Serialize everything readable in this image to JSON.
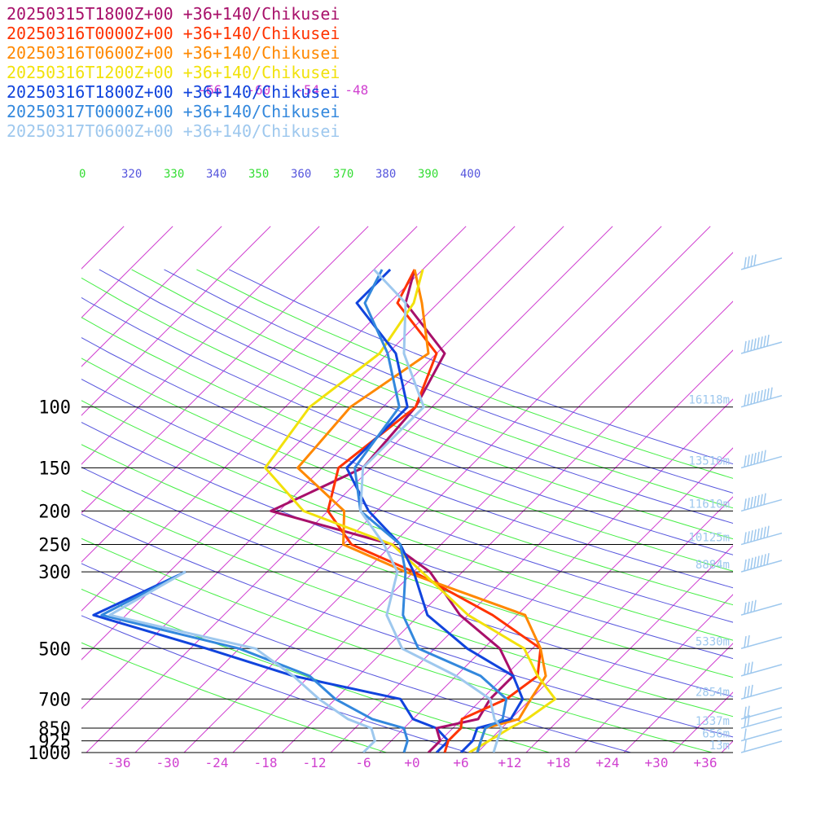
{
  "chart_data": {
    "type": "line",
    "title": "",
    "xlabel": "",
    "ylabel": "",
    "pressure_ticks": [
      "100",
      "150",
      "200",
      "250",
      "300",
      "500",
      "700",
      "850",
      "925",
      "1000"
    ],
    "pressure_levels": [
      100,
      150,
      200,
      250,
      300,
      500,
      700,
      850,
      925,
      1000
    ],
    "temp_ticks": [
      "-36",
      "-30",
      "-24",
      "-18",
      "-12",
      "-6",
      "+0",
      "+6",
      "+12",
      "+18",
      "+24",
      "+30",
      "+36"
    ],
    "temp_values": [
      -36,
      -30,
      -24,
      -18,
      -12,
      -6,
      0,
      6,
      12,
      18,
      24,
      30,
      36
    ],
    "upper_temp_labels": [
      "-66",
      "-60",
      "-54",
      "-48"
    ],
    "theta_labels": [
      {
        "text": "0",
        "color": "#33dd33"
      },
      {
        "text": "320",
        "color": "#5555dd"
      },
      {
        "text": "330",
        "color": "#33dd33"
      },
      {
        "text": "340",
        "color": "#5555dd"
      },
      {
        "text": "350",
        "color": "#33dd33"
      },
      {
        "text": "360",
        "color": "#5555dd"
      },
      {
        "text": "370",
        "color": "#33dd33"
      },
      {
        "text": "380",
        "color": "#5555dd"
      },
      {
        "text": "390",
        "color": "#33dd33"
      },
      {
        "text": "400",
        "color": "#5555dd"
      }
    ],
    "height_labels": [
      {
        "p": 100,
        "text": "16118m"
      },
      {
        "p": 150,
        "text": "13510m"
      },
      {
        "p": 200,
        "text": "11610m"
      },
      {
        "p": 250,
        "text": "10125m"
      },
      {
        "p": 300,
        "text": "8884m"
      },
      {
        "p": 500,
        "text": "5330m"
      },
      {
        "p": 700,
        "text": "2854m"
      },
      {
        "p": 850,
        "text": "1337m"
      },
      {
        "p": 925,
        "text": "656m"
      },
      {
        "p": 1000,
        "text": "13m"
      }
    ],
    "series": [
      {
        "name": "20250315T1800Z+00 +36+140/Chikusei",
        "color": "#a8106a",
        "points": [
          [
            1000,
            2
          ],
          [
            925,
            2
          ],
          [
            850,
            0
          ],
          [
            800,
            4
          ],
          [
            700,
            3
          ],
          [
            600,
            3
          ],
          [
            500,
            -2
          ],
          [
            400,
            -11
          ],
          [
            300,
            -20
          ],
          [
            250,
            -28
          ],
          [
            200,
            -47
          ],
          [
            150,
            -41
          ],
          [
            100,
            -42
          ],
          [
            70,
            -45
          ],
          [
            50,
            -56
          ],
          [
            40,
            -59
          ]
        ]
      },
      {
        "name": "20250316T0000Z+00 +36+140/Chikusei",
        "color": "#ff3300",
        "points": [
          [
            1000,
            4
          ],
          [
            925,
            3
          ],
          [
            850,
            3
          ],
          [
            800,
            2
          ],
          [
            700,
            5
          ],
          [
            600,
            6
          ],
          [
            500,
            3
          ],
          [
            400,
            -7
          ],
          [
            300,
            -22
          ],
          [
            250,
            -33
          ],
          [
            200,
            -40
          ],
          [
            150,
            -44
          ],
          [
            100,
            -42
          ],
          [
            70,
            -46
          ],
          [
            50,
            -57
          ],
          [
            40,
            -59
          ]
        ]
      },
      {
        "name": "20250316T0600Z+00 +36+140/Chikusei",
        "color": "#ff8800",
        "points": [
          [
            1000,
            8
          ],
          [
            925,
            7
          ],
          [
            850,
            6
          ],
          [
            800,
            9
          ],
          [
            700,
            8
          ],
          [
            600,
            7
          ],
          [
            500,
            3
          ],
          [
            400,
            -3
          ],
          [
            300,
            -23
          ],
          [
            250,
            -34
          ],
          [
            200,
            -38
          ],
          [
            150,
            -49
          ],
          [
            100,
            -50
          ],
          [
            70,
            -47
          ],
          [
            50,
            -54
          ],
          [
            40,
            -59
          ]
        ]
      },
      {
        "name": "20250316T1200Z+00 +36+140/Chikusei",
        "color": "#f2e10c",
        "points": [
          [
            1000,
            7
          ],
          [
            925,
            8
          ],
          [
            850,
            9
          ],
          [
            800,
            10
          ],
          [
            700,
            11
          ],
          [
            600,
            6
          ],
          [
            500,
            1
          ],
          [
            400,
            -10
          ],
          [
            300,
            -21
          ],
          [
            250,
            -28
          ],
          [
            200,
            -43
          ],
          [
            150,
            -53
          ],
          [
            100,
            -55
          ],
          [
            70,
            -53
          ],
          [
            50,
            -55
          ],
          [
            40,
            -58
          ]
        ]
      },
      {
        "name": "20250316T1800Z+00 +36+140/Chikusei",
        "color": "#1144dd",
        "points": [
          [
            1000,
            6
          ],
          [
            925,
            6
          ],
          [
            850,
            5
          ],
          [
            800,
            8
          ],
          [
            700,
            7
          ],
          [
            600,
            3
          ],
          [
            500,
            -6
          ],
          [
            400,
            -15
          ],
          [
            300,
            -22
          ],
          [
            250,
            -27
          ],
          [
            200,
            -35
          ],
          [
            150,
            -43
          ],
          [
            100,
            -43
          ],
          [
            70,
            -51
          ],
          [
            50,
            -62
          ],
          [
            40,
            -62
          ]
        ]
      },
      {
        "name": "20250317T0000Z+00 +36+140/Chikusei",
        "color": "#3388dd",
        "points": [
          [
            1000,
            8
          ],
          [
            925,
            7
          ],
          [
            850,
            6
          ],
          [
            800,
            7
          ],
          [
            700,
            5
          ],
          [
            600,
            -1
          ],
          [
            500,
            -12
          ],
          [
            400,
            -18
          ],
          [
            300,
            -23
          ],
          [
            250,
            -27
          ],
          [
            200,
            -36
          ],
          [
            150,
            -42
          ],
          [
            100,
            -44
          ],
          [
            70,
            -52
          ],
          [
            50,
            -61
          ],
          [
            40,
            -63
          ]
        ]
      },
      {
        "name": "20250317T0600Z+00 +36+140/Chikusei",
        "color": "#9ec8ee",
        "points": [
          [
            1000,
            10
          ],
          [
            925,
            9
          ],
          [
            850,
            8
          ],
          [
            800,
            6
          ],
          [
            700,
            3
          ],
          [
            600,
            -4
          ],
          [
            500,
            -14
          ],
          [
            400,
            -20
          ],
          [
            300,
            -24
          ],
          [
            250,
            -29
          ],
          [
            200,
            -36
          ],
          [
            150,
            -41
          ],
          [
            100,
            -41
          ],
          [
            70,
            -50
          ],
          [
            50,
            -56
          ],
          [
            40,
            -64
          ]
        ]
      }
    ],
    "dewpoint_series": [
      {
        "name": "20250316T1800Z+00 +36+140/Chikusei",
        "color": "#1144dd",
        "points": [
          [
            1000,
            3
          ],
          [
            925,
            3
          ],
          [
            850,
            0
          ],
          [
            800,
            -4
          ],
          [
            700,
            -8
          ],
          [
            600,
            -24
          ],
          [
            500,
            -38
          ],
          [
            400,
            -56
          ],
          [
            300,
            -50
          ]
        ]
      },
      {
        "name": "20250317T0000Z+00 +36+140/Chikusei",
        "color": "#3388dd",
        "points": [
          [
            1000,
            -1
          ],
          [
            925,
            -2
          ],
          [
            850,
            -4
          ],
          [
            800,
            -9
          ],
          [
            700,
            -16
          ],
          [
            600,
            -22
          ],
          [
            500,
            -34
          ],
          [
            400,
            -55
          ],
          [
            300,
            -50
          ]
        ]
      },
      {
        "name": "20250317T0600Z+00 +36+140/Chikusei",
        "color": "#9ec8ee",
        "points": [
          [
            1000,
            -6
          ],
          [
            925,
            -6
          ],
          [
            850,
            -8
          ],
          [
            800,
            -12
          ],
          [
            700,
            -18
          ],
          [
            600,
            -24
          ],
          [
            500,
            -32
          ],
          [
            400,
            -54
          ],
          [
            300,
            -50
          ]
        ]
      }
    ],
    "wind_barbs": [
      {
        "p": 40,
        "wspd": 40
      },
      {
        "p": 70,
        "wspd": 80
      },
      {
        "p": 100,
        "wspd": 90
      },
      {
        "p": 150,
        "wspd": 70
      },
      {
        "p": 200,
        "wspd": 70
      },
      {
        "p": 250,
        "wspd": 80
      },
      {
        "p": 300,
        "wspd": 80
      },
      {
        "p": 400,
        "wspd": 35
      },
      {
        "p": 500,
        "wspd": 15
      },
      {
        "p": 600,
        "wspd": 30
      },
      {
        "p": 700,
        "wspd": 25
      },
      {
        "p": 800,
        "wspd": 20
      },
      {
        "p": 850,
        "wspd": 15
      },
      {
        "p": 925,
        "wspd": 10
      },
      {
        "p": 1000,
        "wspd": 5
      }
    ],
    "grid": true,
    "legend": "top-left",
    "ylim": [
      1000,
      40
    ],
    "xlim": [
      -40,
      40
    ]
  }
}
